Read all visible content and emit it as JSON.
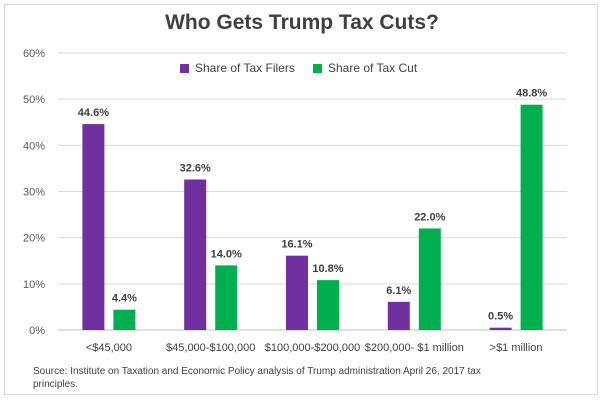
{
  "chart_data": {
    "type": "bar",
    "title": "Who Gets Trump Tax Cuts?",
    "categories": [
      "<$45,000",
      "$45,000-$100,000",
      "$100,000-$200,000",
      "$200,000- $1 million",
      ">$1 million"
    ],
    "series": [
      {
        "name": "Share of Tax Filers",
        "values": [
          44.6,
          32.6,
          16.1,
          6.1,
          0.5
        ],
        "color": "#7030a0"
      },
      {
        "name": "Share of Tax Cut",
        "values": [
          4.4,
          14.0,
          10.8,
          22.0,
          48.8
        ],
        "color": "#00b050"
      }
    ],
    "data_labels": [
      [
        "44.6%",
        "32.6%",
        "16.1%",
        "6.1%",
        "0.5%"
      ],
      [
        "4.4%",
        "14.0%",
        "10.8%",
        "22.0%",
        "48.8%"
      ]
    ],
    "yticks": [
      "0%",
      "10%",
      "20%",
      "30%",
      "40%",
      "50%",
      "60%"
    ],
    "ylim": [
      0,
      60
    ],
    "grid": true,
    "legend": "top-center",
    "source": "Source: Institute on Taxation and Economic Policy analysis of Trump administration April 26, 2017 tax principles."
  }
}
